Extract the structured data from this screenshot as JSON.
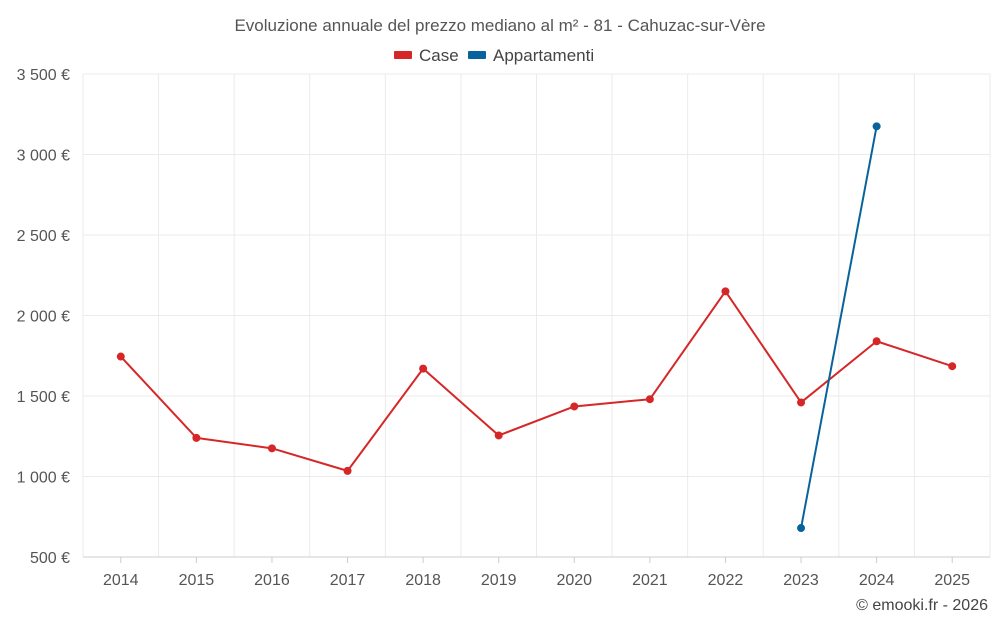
{
  "chart_data": {
    "type": "line",
    "title": "Evoluzione annuale del prezzo mediano al m² - 81 - Cahuzac-sur-Vère",
    "xlabel": "",
    "ylabel": "",
    "categories": [
      "2014",
      "2015",
      "2016",
      "2017",
      "2018",
      "2019",
      "2020",
      "2021",
      "2022",
      "2023",
      "2024",
      "2025"
    ],
    "ylim": [
      500,
      3500
    ],
    "yticks": [
      500,
      1000,
      1500,
      2000,
      2500,
      3000,
      3500
    ],
    "ytick_labels": [
      "500 €",
      "1 000 €",
      "1 500 €",
      "2 000 €",
      "2 500 €",
      "3 000 €",
      "3 500 €"
    ],
    "grid": true,
    "legend_position": "top-center",
    "series": [
      {
        "name": "Case",
        "color": "#d62728",
        "values": [
          1745,
          1240,
          1175,
          1035,
          1670,
          1255,
          1435,
          1480,
          2150,
          1460,
          1840,
          1685
        ]
      },
      {
        "name": "Appartamenti",
        "color": "#08639c",
        "values": [
          null,
          null,
          null,
          null,
          null,
          null,
          null,
          null,
          null,
          680,
          3175,
          null
        ]
      }
    ]
  },
  "credit": "© emooki.fr - 2026"
}
